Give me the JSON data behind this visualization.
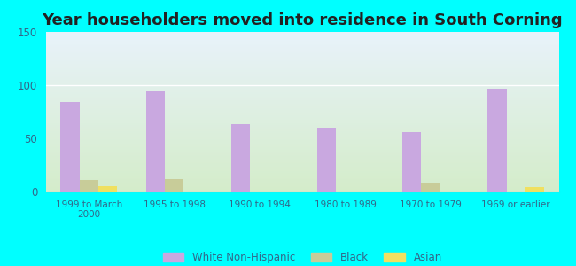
{
  "title": "Year householders moved into residence in South Corning",
  "categories": [
    "1999 to March\n2000",
    "1995 to 1998",
    "1990 to 1994",
    "1980 to 1989",
    "1970 to 1979",
    "1969 or earlier"
  ],
  "white_non_hispanic": [
    84,
    94,
    63,
    60,
    56,
    97
  ],
  "black": [
    11,
    12,
    0,
    0,
    8,
    0
  ],
  "asian": [
    5,
    0,
    0,
    0,
    0,
    4
  ],
  "white_color": "#c9a8e0",
  "black_color": "#c8cc99",
  "asian_color": "#f0e060",
  "background_color": "#00ffff",
  "plot_bg_top": "#e8f2fa",
  "plot_bg_bottom": "#d4ecca",
  "ylim": [
    0,
    150
  ],
  "yticks": [
    0,
    50,
    100,
    150
  ],
  "bar_width": 0.22,
  "title_fontsize": 13
}
